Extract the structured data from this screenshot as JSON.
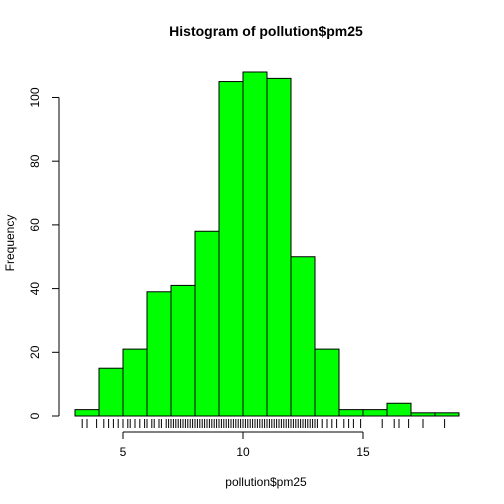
{
  "chart_data": {
    "type": "bar",
    "title": "Histogram of pollution$pm25",
    "xlabel": "pollution$pm25",
    "ylabel": "Frequency",
    "bar_color": "#00ff00",
    "bin_edges": [
      3,
      4,
      5,
      6,
      7,
      8,
      9,
      10,
      11,
      12,
      13,
      14,
      15,
      16,
      17,
      18,
      19
    ],
    "values": [
      2,
      15,
      21,
      39,
      41,
      58,
      105,
      108,
      106,
      50,
      21,
      2,
      2,
      4,
      1,
      1
    ],
    "xlim": [
      3,
      19
    ],
    "ylim": [
      0,
      108
    ],
    "x_ticks": [
      5,
      10,
      15
    ],
    "y_ticks": [
      0,
      20,
      40,
      60,
      80,
      100
    ],
    "rug": [
      3.3,
      3.5,
      3.9,
      4.2,
      4.4,
      4.6,
      4.8,
      5.0,
      5.2,
      5.3,
      5.5,
      5.7,
      5.9,
      6.0,
      6.2,
      6.3,
      6.5,
      6.6,
      6.8,
      6.9,
      7.0,
      7.1,
      7.2,
      7.3,
      7.4,
      7.5,
      7.6,
      7.7,
      7.8,
      7.9,
      8.0,
      8.1,
      8.2,
      8.3,
      8.4,
      8.5,
      8.6,
      8.7,
      8.8,
      8.9,
      9.0,
      9.1,
      9.2,
      9.3,
      9.4,
      9.5,
      9.6,
      9.7,
      9.8,
      9.9,
      10.0,
      10.1,
      10.2,
      10.3,
      10.4,
      10.5,
      10.6,
      10.7,
      10.8,
      10.9,
      11.0,
      11.1,
      11.2,
      11.3,
      11.4,
      11.5,
      11.6,
      11.7,
      11.8,
      11.9,
      12.0,
      12.1,
      12.2,
      12.3,
      12.4,
      12.5,
      12.6,
      12.7,
      12.8,
      12.9,
      13.0,
      13.1,
      13.3,
      13.5,
      13.7,
      13.9,
      14.2,
      14.4,
      14.6,
      14.9,
      15.8,
      16.3,
      16.5,
      16.9,
      17.5,
      18.4
    ]
  }
}
